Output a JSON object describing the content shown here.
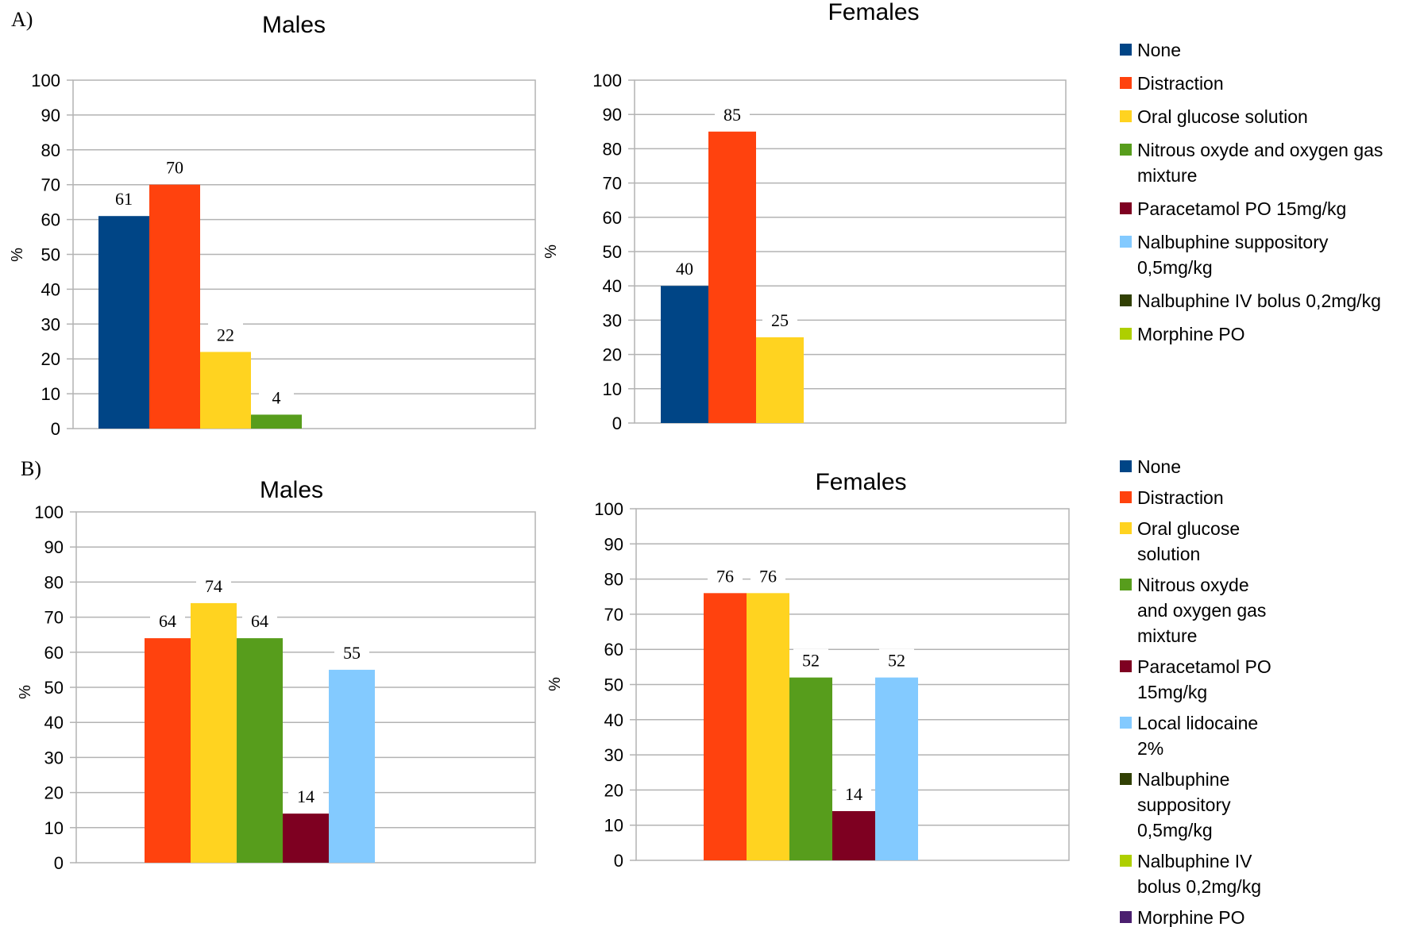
{
  "panels": [
    {
      "label": "A)"
    },
    {
      "label": "B)"
    }
  ],
  "legends": [
    {
      "items": [
        {
          "label": "None",
          "color": "#004586"
        },
        {
          "label": "Distraction",
          "color": "#ff420e"
        },
        {
          "label": "Oral glucose solution",
          "color": "#ffd320"
        },
        {
          "lines": [
            "Nitrous oxyde and oxygen gas",
            "mixture"
          ],
          "color": "#579d1c"
        },
        {
          "label": "Paracetamol PO 15mg/kg",
          "color": "#7e0021"
        },
        {
          "lines": [
            "Nalbuphine suppository",
            "0,5mg/kg"
          ],
          "color": "#83caff"
        },
        {
          "label": "Nalbuphine IV bolus 0,2mg/kg",
          "color": "#314004"
        },
        {
          "label": "Morphine PO",
          "color": "#aecf00"
        }
      ]
    },
    {
      "items": [
        {
          "label": "None",
          "color": "#004586"
        },
        {
          "label": "Distraction",
          "color": "#ff420e"
        },
        {
          "lines": [
            "Oral glucose",
            "solution"
          ],
          "color": "#ffd320"
        },
        {
          "lines": [
            "Nitrous oxyde",
            "and oxygen gas",
            "mixture"
          ],
          "color": "#579d1c"
        },
        {
          "lines": [
            "Paracetamol PO",
            "15mg/kg"
          ],
          "color": "#7e0021"
        },
        {
          "lines": [
            "Local lidocaine",
            "2%"
          ],
          "color": "#83caff"
        },
        {
          "lines": [
            "Nalbuphine",
            "suppository",
            "0,5mg/kg"
          ],
          "color": "#314004"
        },
        {
          "lines": [
            "Nalbuphine IV",
            "bolus 0,2mg/kg"
          ],
          "color": "#aecf00"
        },
        {
          "label": "Morphine PO",
          "color": "#4b1f6f"
        }
      ]
    }
  ],
  "chart_data": [
    {
      "type": "bar",
      "panel": "A",
      "title": "Males",
      "ylabel": "%",
      "ylim": [
        0,
        100
      ],
      "yticks": [
        0,
        10,
        20,
        30,
        40,
        50,
        60,
        70,
        80,
        90,
        100
      ],
      "categories": [
        "None",
        "Distraction",
        "Oral glucose solution",
        "Nitrous oxyde and oxygen gas mixture",
        "Paracetamol PO 15mg/kg",
        "Nalbuphine suppository 0,5mg/kg",
        "Nalbuphine IV bolus 0,2mg/kg",
        "Morphine PO"
      ],
      "values": [
        61,
        70,
        22,
        4,
        null,
        null,
        null,
        null
      ],
      "colors": [
        "#004586",
        "#ff420e",
        "#ffd320",
        "#579d1c",
        "#7e0021",
        "#83caff",
        "#314004",
        "#aecf00"
      ],
      "grid": true
    },
    {
      "type": "bar",
      "panel": "A",
      "title": "Females",
      "ylabel": "%",
      "ylim": [
        0,
        100
      ],
      "yticks": [
        0,
        10,
        20,
        30,
        40,
        50,
        60,
        70,
        80,
        90,
        100
      ],
      "categories": [
        "None",
        "Distraction",
        "Oral glucose solution",
        "Nitrous oxyde and oxygen gas mixture",
        "Paracetamol PO 15mg/kg",
        "Nalbuphine suppository 0,5mg/kg",
        "Nalbuphine IV bolus 0,2mg/kg",
        "Morphine PO"
      ],
      "values": [
        40,
        85,
        25,
        null,
        null,
        null,
        null,
        null
      ],
      "colors": [
        "#004586",
        "#ff420e",
        "#ffd320",
        "#579d1c",
        "#7e0021",
        "#83caff",
        "#314004",
        "#aecf00"
      ],
      "grid": true
    },
    {
      "type": "bar",
      "panel": "B",
      "title": "Males",
      "ylabel": "%",
      "ylim": [
        0,
        100
      ],
      "yticks": [
        0,
        10,
        20,
        30,
        40,
        50,
        60,
        70,
        80,
        90,
        100
      ],
      "categories": [
        "None",
        "Distraction",
        "Oral glucose solution",
        "Nitrous oxyde and oxygen gas mixture",
        "Paracetamol PO 15mg/kg",
        "Local lidocaine 2%",
        "Nalbuphine suppository 0,5mg/kg",
        "Nalbuphine IV bolus 0,2mg/kg",
        "Morphine PO"
      ],
      "values": [
        null,
        64,
        74,
        64,
        14,
        55,
        null,
        null,
        null
      ],
      "colors": [
        "#004586",
        "#ff420e",
        "#ffd320",
        "#579d1c",
        "#7e0021",
        "#83caff",
        "#314004",
        "#aecf00",
        "#4b1f6f"
      ],
      "grid": true
    },
    {
      "type": "bar",
      "panel": "B",
      "title": "Females",
      "ylabel": "%",
      "ylim": [
        0,
        100
      ],
      "yticks": [
        0,
        10,
        20,
        30,
        40,
        50,
        60,
        70,
        80,
        90,
        100
      ],
      "categories": [
        "None",
        "Distraction",
        "Oral glucose solution",
        "Nitrous oxyde and oxygen gas mixture",
        "Paracetamol PO 15mg/kg",
        "Local lidocaine 2%",
        "Nalbuphine suppository 0,5mg/kg",
        "Nalbuphine IV bolus 0,2mg/kg",
        "Morphine PO"
      ],
      "values": [
        null,
        76,
        76,
        52,
        14,
        52,
        null,
        null,
        null
      ],
      "colors": [
        "#004586",
        "#ff420e",
        "#ffd320",
        "#579d1c",
        "#7e0021",
        "#83caff",
        "#314004",
        "#aecf00",
        "#4b1f6f"
      ],
      "grid": true
    }
  ]
}
